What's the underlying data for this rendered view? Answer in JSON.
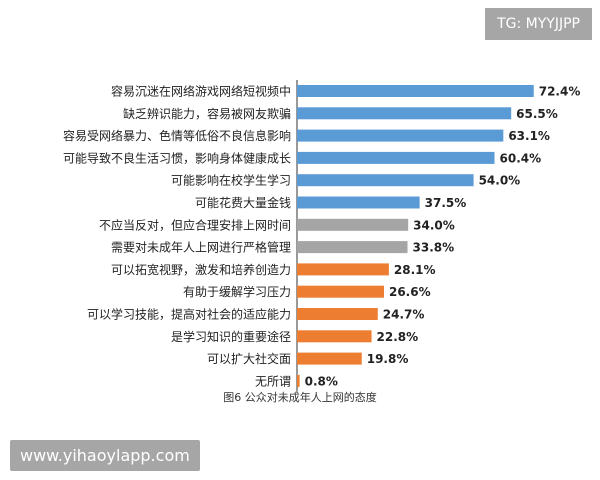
{
  "watermarks": {
    "top_right": "TG: MYYJJPP",
    "bottom_left": "www.yihaoylapp.com"
  },
  "colors": {
    "blue": "#5b9bd5",
    "gray": "#a5a5a5",
    "orange": "#ed7d31"
  },
  "chart_data": {
    "type": "bar",
    "orientation": "horizontal",
    "title": "图6 公众对未成年人上网的态度",
    "categories": [
      "容易沉迷在网络游戏网络短视频中",
      "缺乏辨识能力，容易被网友欺骗",
      "容易受网络暴力、色情等低俗不良信息影响",
      "可能导致不良生活习惯，影响身体健康成长",
      "可能影响在校学生学习",
      "可能花费大量金钱",
      "不应当反对，但应合理安排上网时间",
      "需要对未成年人上网进行严格管理",
      "可以拓宽视野，激发和培养创造力",
      "有助于缓解学习压力",
      "可以学习技能，提高对社会的适应能力",
      "是学习知识的重要途径",
      "可以扩大社交面",
      "无所谓"
    ],
    "values": [
      72.4,
      65.5,
      63.1,
      60.4,
      54.0,
      37.5,
      34.0,
      33.8,
      28.1,
      26.6,
      24.7,
      22.8,
      19.8,
      0.8
    ],
    "value_labels": [
      "72.4%",
      "65.5%",
      "63.1%",
      "60.4%",
      "54.0%",
      "37.5%",
      "34.0%",
      "33.8%",
      "28.1%",
      "26.6%",
      "24.7%",
      "22.8%",
      "19.8%",
      "0.8%"
    ],
    "bar_colors": [
      "blue",
      "blue",
      "blue",
      "blue",
      "blue",
      "blue",
      "gray",
      "gray",
      "orange",
      "orange",
      "orange",
      "orange",
      "orange",
      "orange"
    ],
    "xlim": [
      0,
      80
    ],
    "grid": false,
    "legend": "none"
  }
}
